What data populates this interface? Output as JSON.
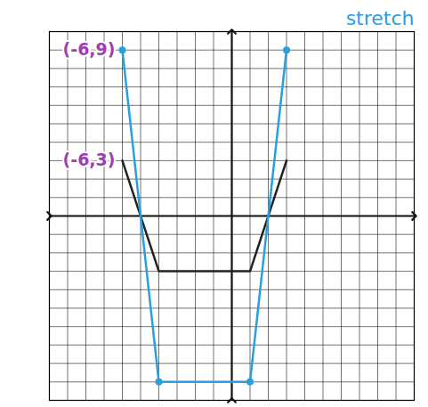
{
  "chart_data": {
    "type": "line",
    "title": "stretch",
    "title_color": "#2a9fe0",
    "x": [
      -6,
      -4,
      1,
      3
    ],
    "series": [
      {
        "color": "#222222",
        "values": [
          3,
          -3,
          -3,
          3
        ],
        "marker": "none"
      },
      {
        "color": "#2a9fe0",
        "values": [
          9,
          -9,
          -9,
          9
        ],
        "marker": "circle"
      }
    ],
    "xlim": [
      -10,
      10
    ],
    "ylim": [
      -10,
      10
    ],
    "xticks": [
      -10,
      -9,
      -8,
      -7,
      -6,
      -5,
      -4,
      -3,
      -2,
      -1,
      0,
      1,
      2,
      3,
      4,
      5,
      6,
      7,
      8,
      9,
      10
    ],
    "yticks": [
      -10,
      -9,
      -8,
      -7,
      -6,
      -5,
      -4,
      -3,
      -2,
      -1,
      0,
      1,
      2,
      3,
      4,
      5,
      6,
      7,
      8,
      9,
      10
    ],
    "grid": true,
    "tick_labels": false,
    "annotations": [
      {
        "text": "(-6,9)",
        "x": -6,
        "y": 9,
        "color": "#9b3fb5"
      },
      {
        "text": "(-6,3)",
        "x": -6,
        "y": 3,
        "color": "#9b3fb5"
      }
    ]
  }
}
